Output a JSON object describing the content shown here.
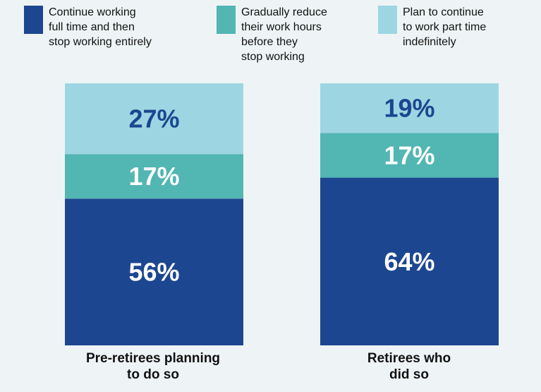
{
  "colors": {
    "background": "#eef4f5",
    "full_time_then_stop": "#1c4690",
    "gradually_reduce": "#52b6b3",
    "part_time_indefinitely": "#9dd6e2",
    "label_on_light": "#1c4690",
    "label_on_dark": "#ffffff"
  },
  "legend": [
    {
      "label": "Continue working\nfull time and then\nstop working entirely",
      "color": "#1c4690"
    },
    {
      "label": "Gradually reduce\ntheir work hours\nbefore they\nstop working",
      "color": "#52b6b3"
    },
    {
      "label": "Plan to continue\nto work part time\nindefinitely",
      "color": "#9dd6e2"
    }
  ],
  "chart_data": {
    "type": "bar",
    "stacked": true,
    "categories": [
      "Pre-retirees planning\nto do so",
      "Retirees who\ndid so"
    ],
    "series": [
      {
        "name": "Continue working full time and then stop working entirely",
        "values": [
          56,
          64
        ],
        "color": "#1c4690",
        "labels": [
          "56%",
          "64%"
        ]
      },
      {
        "name": "Gradually reduce their work hours before they stop working",
        "values": [
          17,
          17
        ],
        "color": "#52b6b3",
        "labels": [
          "17%",
          "17%"
        ]
      },
      {
        "name": "Plan to continue to work part time indefinitely",
        "values": [
          27,
          19
        ],
        "color": "#9dd6e2",
        "labels": [
          "27%",
          "19%"
        ]
      }
    ],
    "ylim": [
      0,
      100
    ],
    "grid": false,
    "legend_position": "top",
    "title": "",
    "xlabel": "",
    "ylabel": ""
  }
}
